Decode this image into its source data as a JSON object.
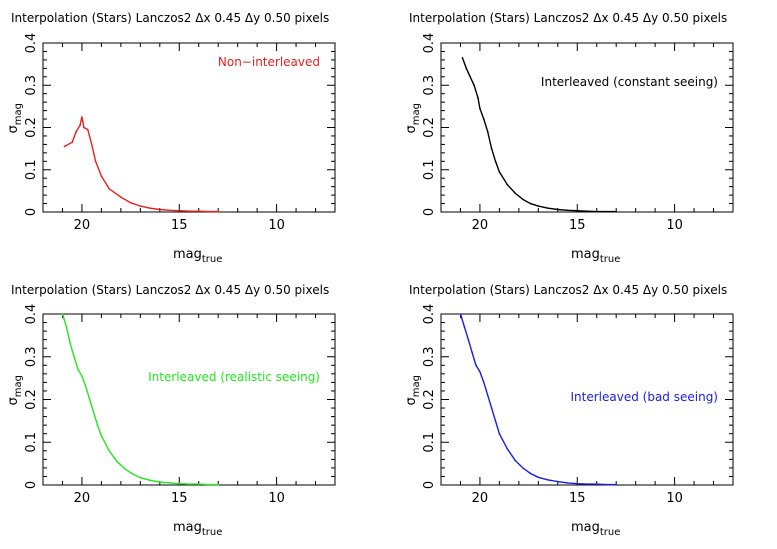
{
  "chart_data": [
    {
      "type": "line",
      "title": "Interpolation (Stars) Lanczos2 Δx 0.45 Δy 0.50 pixels",
      "xlabel": "mag",
      "xlabel_sub": "true",
      "ylabel": "σ",
      "ylabel_sub": "mag",
      "xlim": [
        22,
        7
      ],
      "ylim": [
        0,
        0.4
      ],
      "xticks": [
        "20",
        "15",
        "10"
      ],
      "yticks": [
        "0",
        "0.1",
        "0.2",
        "0.3",
        "0.4"
      ],
      "legend": "Non−interleaved",
      "legend_position": "top-right",
      "color": "#e8201e",
      "series": [
        {
          "name": "Non−interleaved",
          "x": [
            20.9,
            20.5,
            20.3,
            20.1,
            20.0,
            19.9,
            19.7,
            19.5,
            19.3,
            19.0,
            18.6,
            18.0,
            17.5,
            17.0,
            16.5,
            16.0,
            15.5,
            15.0,
            14.5,
            14.0,
            13.5,
            13.0
          ],
          "y": [
            0.155,
            0.165,
            0.19,
            0.205,
            0.225,
            0.2,
            0.195,
            0.16,
            0.12,
            0.085,
            0.055,
            0.035,
            0.022,
            0.014,
            0.009,
            0.006,
            0.004,
            0.003,
            0.002,
            0.002,
            0.001,
            0.001
          ]
        }
      ]
    },
    {
      "type": "line",
      "title": "Interpolation (Stars) Lanczos2 Δx 0.45 Δy 0.50 pixels",
      "xlabel": "mag",
      "xlabel_sub": "true",
      "ylabel": "σ",
      "ylabel_sub": "mag",
      "xlim": [
        22,
        7
      ],
      "ylim": [
        0,
        0.4
      ],
      "xticks": [
        "20",
        "15",
        "10"
      ],
      "yticks": [
        "0",
        "0.1",
        "0.2",
        "0.3",
        "0.4"
      ],
      "legend": "Interleaved (constant seeing)",
      "legend_position": "top-right",
      "color": "#000000",
      "series": [
        {
          "name": "Interleaved (constant seeing)",
          "x": [
            20.9,
            20.7,
            20.5,
            20.3,
            20.1,
            20.0,
            19.8,
            19.6,
            19.4,
            19.2,
            19.0,
            18.6,
            18.2,
            17.8,
            17.4,
            17.0,
            16.5,
            16.0,
            15.5,
            15.0,
            14.5,
            14.0,
            13.5,
            13.0
          ],
          "y": [
            0.365,
            0.34,
            0.32,
            0.3,
            0.27,
            0.245,
            0.22,
            0.19,
            0.15,
            0.12,
            0.095,
            0.065,
            0.045,
            0.03,
            0.02,
            0.014,
            0.009,
            0.006,
            0.004,
            0.003,
            0.002,
            0.001,
            0.001,
            0.001
          ]
        }
      ]
    },
    {
      "type": "line",
      "title": "Interpolation (Stars) Lanczos2 Δx 0.45 Δy 0.50 pixels",
      "xlabel": "mag",
      "xlabel_sub": "true",
      "ylabel": "σ",
      "ylabel_sub": "mag",
      "xlim": [
        22,
        7
      ],
      "ylim": [
        0,
        0.4
      ],
      "xticks": [
        "20",
        "15",
        "10"
      ],
      "yticks": [
        "0",
        "0.1",
        "0.2",
        "0.3",
        "0.4"
      ],
      "legend": "Interleaved (realistic seeing)",
      "legend_position": "top-right",
      "color": "#22e81e",
      "series": [
        {
          "name": "Interleaved (realistic seeing)",
          "x": [
            21.0,
            20.8,
            20.6,
            20.4,
            20.2,
            20.0,
            19.8,
            19.6,
            19.4,
            19.2,
            19.0,
            18.6,
            18.2,
            17.8,
            17.4,
            17.0,
            16.5,
            16.0,
            15.5,
            15.0,
            14.5,
            14.0,
            13.5,
            13.0
          ],
          "y": [
            0.4,
            0.37,
            0.33,
            0.3,
            0.27,
            0.255,
            0.23,
            0.2,
            0.17,
            0.14,
            0.115,
            0.08,
            0.055,
            0.038,
            0.026,
            0.017,
            0.011,
            0.007,
            0.005,
            0.003,
            0.002,
            0.002,
            0.001,
            0.001
          ]
        }
      ]
    },
    {
      "type": "line",
      "title": "Interpolation (Stars) Lanczos2 Δx 0.45 Δy 0.50 pixels",
      "xlabel": "mag",
      "xlabel_sub": "true",
      "ylabel": "σ",
      "ylabel_sub": "mag",
      "xlim": [
        22,
        7
      ],
      "ylim": [
        0,
        0.4
      ],
      "xticks": [
        "20",
        "15",
        "10"
      ],
      "yticks": [
        "0",
        "0.1",
        "0.2",
        "0.3",
        "0.4"
      ],
      "legend": "Interleaved (bad seeing)",
      "legend_position": "right",
      "color": "#1a1ee0",
      "series": [
        {
          "name": "Interleaved (bad seeing)",
          "x": [
            21.0,
            20.8,
            20.6,
            20.4,
            20.2,
            20.0,
            19.8,
            19.6,
            19.4,
            19.2,
            19.0,
            18.6,
            18.2,
            17.8,
            17.4,
            17.0,
            16.5,
            16.0,
            15.5,
            15.0,
            14.5,
            14.0,
            13.5,
            13.0
          ],
          "y": [
            0.4,
            0.37,
            0.34,
            0.31,
            0.28,
            0.265,
            0.24,
            0.21,
            0.18,
            0.15,
            0.12,
            0.085,
            0.058,
            0.04,
            0.027,
            0.018,
            0.012,
            0.008,
            0.005,
            0.003,
            0.002,
            0.002,
            0.001,
            0.001
          ]
        }
      ]
    }
  ]
}
